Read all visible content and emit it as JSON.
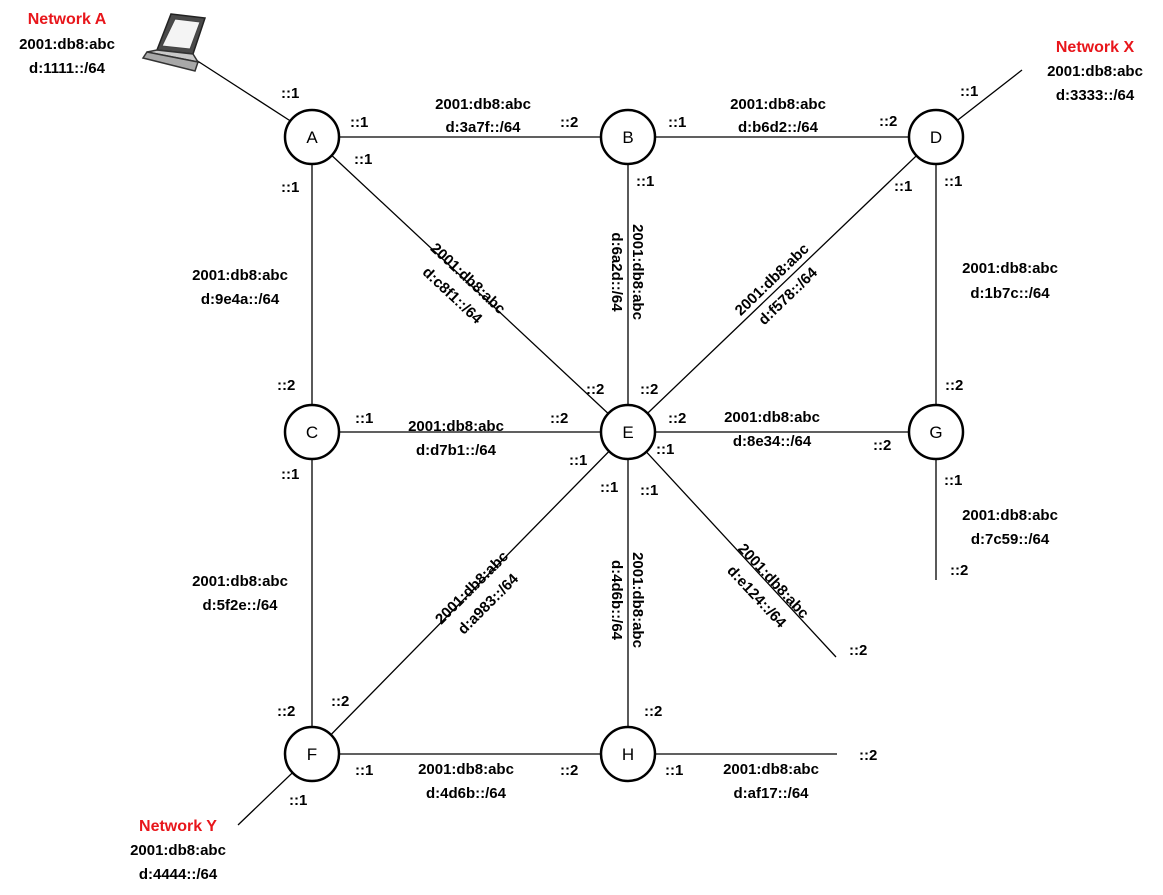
{
  "networks": {
    "a": {
      "name": "Network A",
      "line1": "2001:db8:abc",
      "line2": "d:1111::/64"
    },
    "x": {
      "name": "Network X",
      "line1": "2001:db8:abc",
      "line2": "d:3333::/64"
    },
    "y": {
      "name": "Network Y",
      "line1": "2001:db8:abc",
      "line2": "d:4444::/64"
    }
  },
  "nodes": {
    "A": "A",
    "B": "B",
    "C": "C",
    "D": "D",
    "E": "E",
    "F": "F",
    "G": "G",
    "H": "H"
  },
  "links": {
    "ab": {
      "line1": "2001:db8:abc",
      "line2": "d:3a7f::/64"
    },
    "bd": {
      "line1": "2001:db8:abc",
      "line2": "d:b6d2::/64"
    },
    "ac": {
      "line1": "2001:db8:abc",
      "line2": "d:9e4a::/64"
    },
    "ae": {
      "line1": "2001:db8:abc",
      "line2": "d:c8f1::/64"
    },
    "be": {
      "line1": "2001:db8:abc",
      "line2": "d:6a2d::/64"
    },
    "de": {
      "line1": "2001:db8:abc",
      "line2": "d:f578::/64"
    },
    "dg": {
      "line1": "2001:db8:abc",
      "line2": "d:1b7c::/64"
    },
    "ce": {
      "line1": "2001:db8:abc",
      "line2": "d:d7b1::/64"
    },
    "eg": {
      "line1": "2001:db8:abc",
      "line2": "d:8e34::/64"
    },
    "cf": {
      "line1": "2001:db8:abc",
      "line2": "d:5f2e::/64"
    },
    "ef": {
      "line1": "2001:db8:abc",
      "line2": "d:a983::/64"
    },
    "eh": {
      "line1": "2001:db8:abc",
      "line2": "d:4d6b::/64"
    },
    "e_stub": {
      "line1": "2001:db8:abc",
      "line2": "d:e124::/64"
    },
    "g_stub": {
      "line1": "2001:db8:abc",
      "line2": "d:7c59::/64"
    },
    "fh": {
      "line1": "2001:db8:abc",
      "line2": "d:4d6b::/64"
    },
    "h_stub": {
      "line1": "2001:db8:abc",
      "line2": "d:af17::/64"
    }
  },
  "interfaces": {
    "one": "::1",
    "two": "::2"
  }
}
